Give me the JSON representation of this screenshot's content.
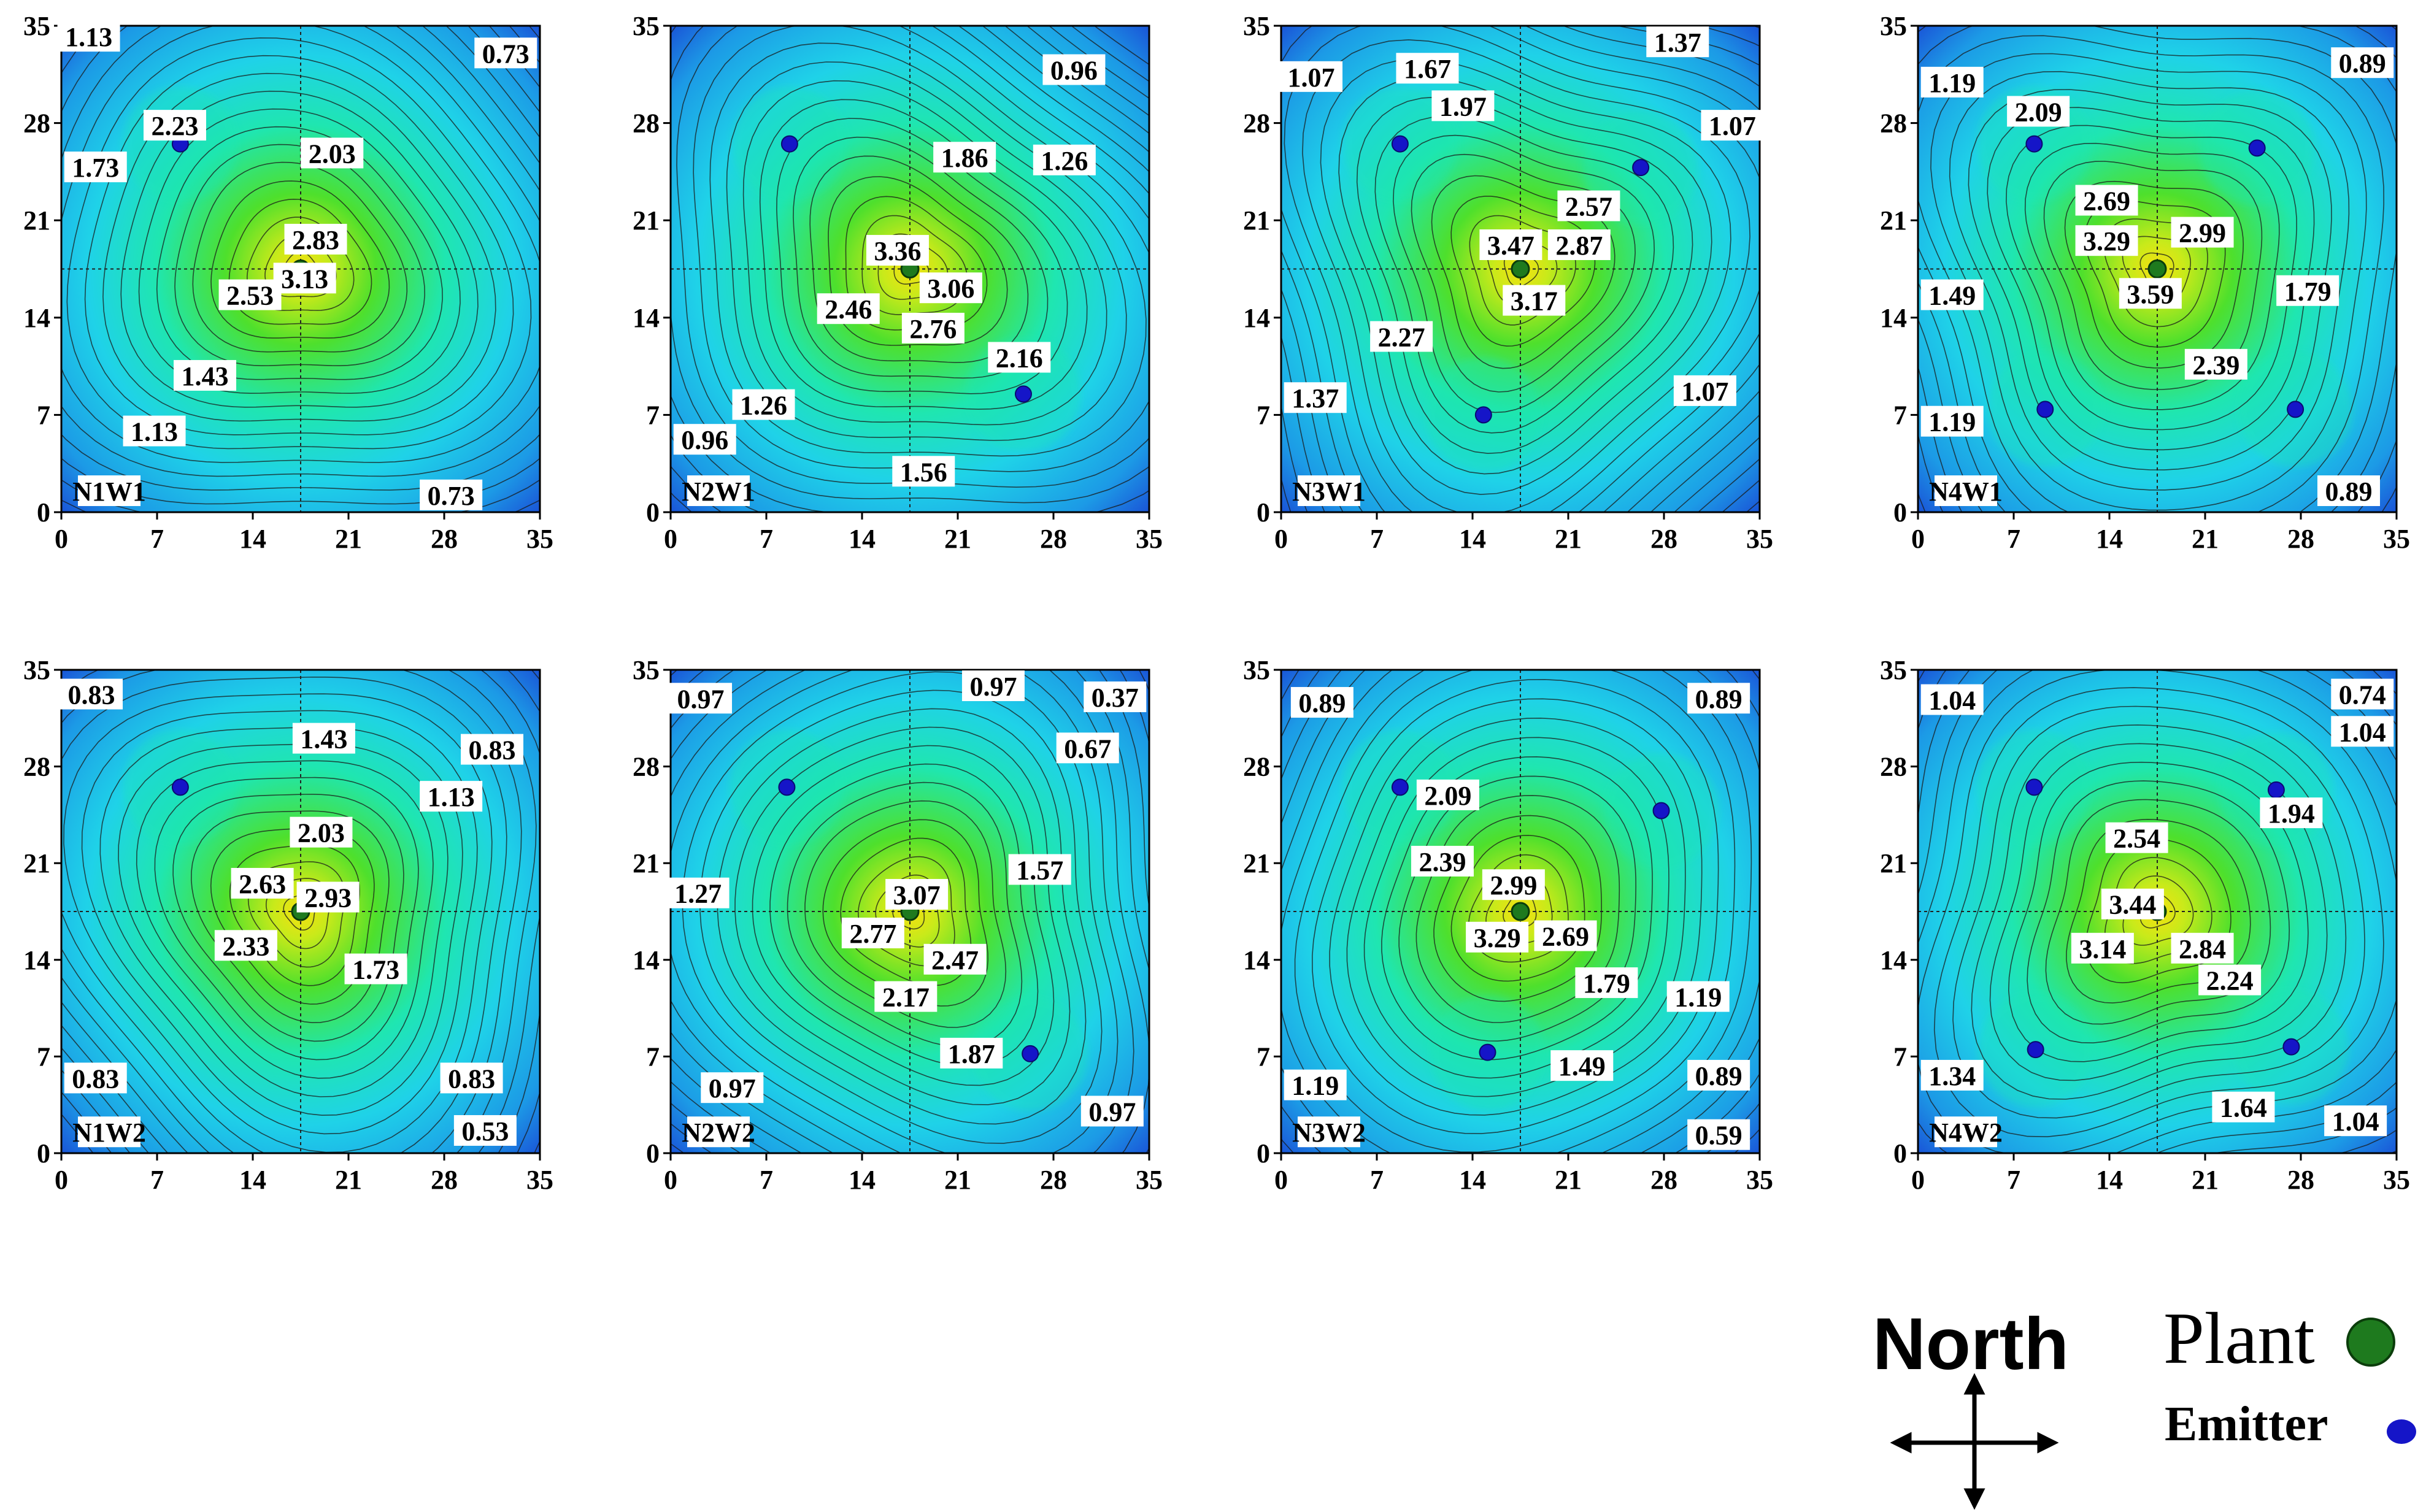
{
  "legend": {
    "north_label": "North",
    "plant_label": "Plant",
    "emitter_label": "Emitter",
    "plant_color": "#1e7a1e",
    "emitter_color": "#1515c8"
  },
  "colors": {
    "low": "#1a4fd6",
    "mid_low": "#1fd2e8",
    "mid": "#1fe6b0",
    "mid_high": "#4ee02c",
    "high": "#f6e010"
  },
  "chart_data": [
    {
      "type": "heatmap",
      "panel_label": "N1W1",
      "xlim": [
        0,
        35
      ],
      "ylim": [
        0,
        35
      ],
      "xticks": [
        "0",
        "7",
        "14",
        "21",
        "28",
        "35"
      ],
      "yticks": [
        "0",
        "7",
        "14",
        "21",
        "28",
        "35"
      ],
      "peak_value": 3.3,
      "min_value": 0.7,
      "plant": [
        17.5,
        17.5
      ],
      "emitters": [
        [
          8.7,
          26.5
        ]
      ],
      "contour_labels": [
        {
          "text": "1.13",
          "x": 2.0,
          "y": 34.2
        },
        {
          "text": "0.73",
          "x": 32.5,
          "y": 33.0
        },
        {
          "text": "2.23",
          "x": 8.3,
          "y": 27.8
        },
        {
          "text": "1.73",
          "x": 2.5,
          "y": 24.8
        },
        {
          "text": "2.03",
          "x": 19.8,
          "y": 25.8
        },
        {
          "text": "2.83",
          "x": 18.6,
          "y": 19.6
        },
        {
          "text": "3.13",
          "x": 17.8,
          "y": 16.8
        },
        {
          "text": "2.53",
          "x": 13.8,
          "y": 15.6
        },
        {
          "text": "1.43",
          "x": 10.5,
          "y": 9.8
        },
        {
          "text": "1.13",
          "x": 6.8,
          "y": 5.8
        },
        {
          "text": "0.73",
          "x": 28.5,
          "y": 1.2
        },
        {
          "text": "N1W1",
          "x": 3.5,
          "y": 1.5
        }
      ]
    },
    {
      "type": "heatmap",
      "panel_label": "N2W1",
      "xlim": [
        0,
        35
      ],
      "ylim": [
        0,
        35
      ],
      "xticks": [
        "0",
        "7",
        "14",
        "21",
        "28",
        "35"
      ],
      "yticks": [
        "0",
        "7",
        "14",
        "21",
        "28",
        "35"
      ],
      "peak_value": 3.5,
      "min_value": 0.9,
      "plant": [
        17.5,
        17.5
      ],
      "emitters": [
        [
          8.7,
          26.5
        ],
        [
          25.8,
          8.5
        ]
      ],
      "contour_labels": [
        {
          "text": "0.96",
          "x": 29.5,
          "y": 31.8
        },
        {
          "text": "1.86",
          "x": 21.5,
          "y": 25.5
        },
        {
          "text": "1.26",
          "x": 28.8,
          "y": 25.3
        },
        {
          "text": "3.36",
          "x": 16.6,
          "y": 18.8
        },
        {
          "text": "3.06",
          "x": 20.5,
          "y": 16.1
        },
        {
          "text": "2.46",
          "x": 13.0,
          "y": 14.6
        },
        {
          "text": "2.76",
          "x": 19.2,
          "y": 13.2
        },
        {
          "text": "2.16",
          "x": 25.5,
          "y": 11.1
        },
        {
          "text": "1.26",
          "x": 6.8,
          "y": 7.7
        },
        {
          "text": "0.96",
          "x": 2.5,
          "y": 5.2
        },
        {
          "text": "1.56",
          "x": 18.5,
          "y": 2.9
        },
        {
          "text": "N2W1",
          "x": 3.5,
          "y": 1.5
        }
      ]
    },
    {
      "type": "heatmap",
      "panel_label": "N3W1",
      "xlim": [
        0,
        35
      ],
      "ylim": [
        0,
        35
      ],
      "xticks": [
        "0",
        "7",
        "14",
        "21",
        "28",
        "35"
      ],
      "yticks": [
        "0",
        "7",
        "14",
        "21",
        "28",
        "35"
      ],
      "peak_value": 3.6,
      "min_value": 1.0,
      "plant": [
        17.5,
        17.5
      ],
      "emitters": [
        [
          8.7,
          26.5
        ],
        [
          26.3,
          24.8
        ],
        [
          14.8,
          7.0
        ]
      ],
      "contour_labels": [
        {
          "text": "1.37",
          "x": 29.0,
          "y": 33.8
        },
        {
          "text": "1.67",
          "x": 10.7,
          "y": 31.9
        },
        {
          "text": "1.07",
          "x": 2.2,
          "y": 31.3
        },
        {
          "text": "1.97",
          "x": 13.3,
          "y": 29.2
        },
        {
          "text": "1.07",
          "x": 33.0,
          "y": 27.8
        },
        {
          "text": "2.57",
          "x": 22.5,
          "y": 22.0
        },
        {
          "text": "3.47",
          "x": 16.8,
          "y": 19.2
        },
        {
          "text": "2.87",
          "x": 21.8,
          "y": 19.2
        },
        {
          "text": "3.17",
          "x": 18.5,
          "y": 15.2
        },
        {
          "text": "2.27",
          "x": 8.8,
          "y": 12.6
        },
        {
          "text": "1.37",
          "x": 2.5,
          "y": 8.2
        },
        {
          "text": "1.07",
          "x": 31.0,
          "y": 8.7
        },
        {
          "text": "N3W1",
          "x": 3.5,
          "y": 1.5
        }
      ]
    },
    {
      "type": "heatmap",
      "panel_label": "N4W1",
      "xlim": [
        0,
        35
      ],
      "ylim": [
        0,
        35
      ],
      "xticks": [
        "0",
        "7",
        "14",
        "21",
        "28",
        "35"
      ],
      "yticks": [
        "0",
        "7",
        "14",
        "21",
        "28",
        "35"
      ],
      "peak_value": 3.7,
      "min_value": 0.8,
      "plant": [
        17.5,
        17.5
      ],
      "emitters": [
        [
          8.5,
          26.5
        ],
        [
          24.8,
          26.2
        ],
        [
          9.3,
          7.4
        ],
        [
          27.6,
          7.4
        ]
      ],
      "contour_labels": [
        {
          "text": "0.89",
          "x": 32.5,
          "y": 32.3
        },
        {
          "text": "1.19",
          "x": 2.5,
          "y": 30.9
        },
        {
          "text": "2.09",
          "x": 8.8,
          "y": 28.8
        },
        {
          "text": "2.69",
          "x": 13.8,
          "y": 22.4
        },
        {
          "text": "3.29",
          "x": 13.8,
          "y": 19.5
        },
        {
          "text": "2.99",
          "x": 20.8,
          "y": 20.1
        },
        {
          "text": "3.59",
          "x": 17.0,
          "y": 15.7
        },
        {
          "text": "1.49",
          "x": 2.5,
          "y": 15.6
        },
        {
          "text": "1.79",
          "x": 28.5,
          "y": 15.9
        },
        {
          "text": "2.39",
          "x": 21.8,
          "y": 10.6
        },
        {
          "text": "1.19",
          "x": 2.5,
          "y": 6.5
        },
        {
          "text": "0.89",
          "x": 31.5,
          "y": 1.5
        },
        {
          "text": "N4W1",
          "x": 3.5,
          "y": 1.5
        }
      ]
    },
    {
      "type": "heatmap",
      "panel_label": "N1W2",
      "xlim": [
        0,
        35
      ],
      "ylim": [
        0,
        35
      ],
      "xticks": [
        "0",
        "7",
        "14",
        "21",
        "28",
        "35"
      ],
      "yticks": [
        "0",
        "7",
        "14",
        "21",
        "28",
        "35"
      ],
      "peak_value": 3.1,
      "min_value": 0.5,
      "plant": [
        17.5,
        17.5
      ],
      "emitters": [
        [
          8.7,
          26.5
        ]
      ],
      "contour_labels": [
        {
          "text": "0.83",
          "x": 2.2,
          "y": 33.2
        },
        {
          "text": "1.43",
          "x": 19.2,
          "y": 30.0
        },
        {
          "text": "0.83",
          "x": 31.5,
          "y": 29.2
        },
        {
          "text": "1.13",
          "x": 28.5,
          "y": 25.8
        },
        {
          "text": "2.03",
          "x": 19.0,
          "y": 23.2
        },
        {
          "text": "2.63",
          "x": 14.7,
          "y": 19.5
        },
        {
          "text": "2.93",
          "x": 19.5,
          "y": 18.5
        },
        {
          "text": "2.33",
          "x": 13.5,
          "y": 15.0
        },
        {
          "text": "1.73",
          "x": 23.0,
          "y": 13.3
        },
        {
          "text": "0.83",
          "x": 2.5,
          "y": 5.4
        },
        {
          "text": "0.83",
          "x": 30.0,
          "y": 5.4
        },
        {
          "text": "0.53",
          "x": 31.0,
          "y": 1.6
        },
        {
          "text": "N1W2",
          "x": 3.5,
          "y": 1.5
        }
      ]
    },
    {
      "type": "heatmap",
      "panel_label": "N2W2",
      "xlim": [
        0,
        35
      ],
      "ylim": [
        0,
        35
      ],
      "xticks": [
        "0",
        "7",
        "14",
        "21",
        "28",
        "35"
      ],
      "yticks": [
        "0",
        "7",
        "14",
        "21",
        "28",
        "35"
      ],
      "peak_value": 3.2,
      "min_value": 0.3,
      "plant": [
        17.5,
        17.5
      ],
      "emitters": [
        [
          8.5,
          26.5
        ],
        [
          26.3,
          7.2
        ]
      ],
      "contour_labels": [
        {
          "text": "0.97",
          "x": 2.2,
          "y": 32.9
        },
        {
          "text": "0.97",
          "x": 23.6,
          "y": 33.8
        },
        {
          "text": "0.37",
          "x": 32.5,
          "y": 33.0
        },
        {
          "text": "0.67",
          "x": 30.5,
          "y": 29.3
        },
        {
          "text": "1.57",
          "x": 27.0,
          "y": 20.5
        },
        {
          "text": "1.27",
          "x": 2.0,
          "y": 18.8
        },
        {
          "text": "3.07",
          "x": 18.0,
          "y": 18.7
        },
        {
          "text": "2.77",
          "x": 14.8,
          "y": 15.9
        },
        {
          "text": "2.47",
          "x": 20.8,
          "y": 14.0
        },
        {
          "text": "2.17",
          "x": 17.2,
          "y": 11.3
        },
        {
          "text": "1.87",
          "x": 22.0,
          "y": 7.2
        },
        {
          "text": "0.97",
          "x": 4.5,
          "y": 4.7
        },
        {
          "text": "0.97",
          "x": 32.3,
          "y": 3.0
        },
        {
          "text": "N2W2",
          "x": 3.5,
          "y": 1.5
        }
      ]
    },
    {
      "type": "heatmap",
      "panel_label": "N3W2",
      "xlim": [
        0,
        35
      ],
      "ylim": [
        0,
        35
      ],
      "xticks": [
        "0",
        "7",
        "14",
        "21",
        "28",
        "35"
      ],
      "yticks": [
        "0",
        "7",
        "14",
        "21",
        "28",
        "35"
      ],
      "peak_value": 3.2,
      "min_value": 0.5,
      "plant": [
        17.5,
        17.5
      ],
      "emitters": [
        [
          8.7,
          26.5
        ],
        [
          27.8,
          24.8
        ],
        [
          15.1,
          7.3
        ]
      ],
      "contour_labels": [
        {
          "text": "0.89",
          "x": 3.0,
          "y": 32.6
        },
        {
          "text": "0.89",
          "x": 32.0,
          "y": 32.9
        },
        {
          "text": "2.09",
          "x": 12.2,
          "y": 25.9
        },
        {
          "text": "2.39",
          "x": 11.8,
          "y": 21.1
        },
        {
          "text": "2.99",
          "x": 17.0,
          "y": 19.4
        },
        {
          "text": "3.29",
          "x": 15.8,
          "y": 15.6
        },
        {
          "text": "2.69",
          "x": 20.8,
          "y": 15.7
        },
        {
          "text": "1.79",
          "x": 23.8,
          "y": 12.3
        },
        {
          "text": "1.19",
          "x": 30.5,
          "y": 11.3
        },
        {
          "text": "1.49",
          "x": 22.0,
          "y": 6.3
        },
        {
          "text": "0.89",
          "x": 32.0,
          "y": 5.6
        },
        {
          "text": "1.19",
          "x": 2.5,
          "y": 4.9
        },
        {
          "text": "0.59",
          "x": 32.0,
          "y": 1.3
        },
        {
          "text": "N3W2",
          "x": 3.5,
          "y": 1.5
        }
      ]
    },
    {
      "type": "heatmap",
      "panel_label": "N4W2",
      "xlim": [
        0,
        35
      ],
      "ylim": [
        0,
        35
      ],
      "xticks": [
        "0",
        "7",
        "14",
        "21",
        "28",
        "35"
      ],
      "yticks": [
        "0",
        "7",
        "14",
        "21",
        "28",
        "35"
      ],
      "peak_value": 3.6,
      "min_value": 0.7,
      "plant": [
        17.5,
        17.5
      ],
      "emitters": [
        [
          8.5,
          26.5
        ],
        [
          26.2,
          26.3
        ],
        [
          8.6,
          7.5
        ],
        [
          27.3,
          7.7
        ]
      ],
      "contour_labels": [
        {
          "text": "1.04",
          "x": 2.5,
          "y": 32.8
        },
        {
          "text": "0.74",
          "x": 32.5,
          "y": 33.2
        },
        {
          "text": "1.04",
          "x": 32.5,
          "y": 30.5
        },
        {
          "text": "1.94",
          "x": 27.3,
          "y": 24.6
        },
        {
          "text": "2.54",
          "x": 16.0,
          "y": 22.8
        },
        {
          "text": "3.44",
          "x": 15.7,
          "y": 18.0
        },
        {
          "text": "3.14",
          "x": 13.5,
          "y": 14.8
        },
        {
          "text": "2.84",
          "x": 20.8,
          "y": 14.8
        },
        {
          "text": "2.24",
          "x": 22.8,
          "y": 12.5
        },
        {
          "text": "1.34",
          "x": 2.5,
          "y": 5.6
        },
        {
          "text": "1.64",
          "x": 23.8,
          "y": 3.3
        },
        {
          "text": "1.04",
          "x": 32.0,
          "y": 2.3
        },
        {
          "text": "N4W2",
          "x": 3.5,
          "y": 1.5
        }
      ]
    }
  ]
}
